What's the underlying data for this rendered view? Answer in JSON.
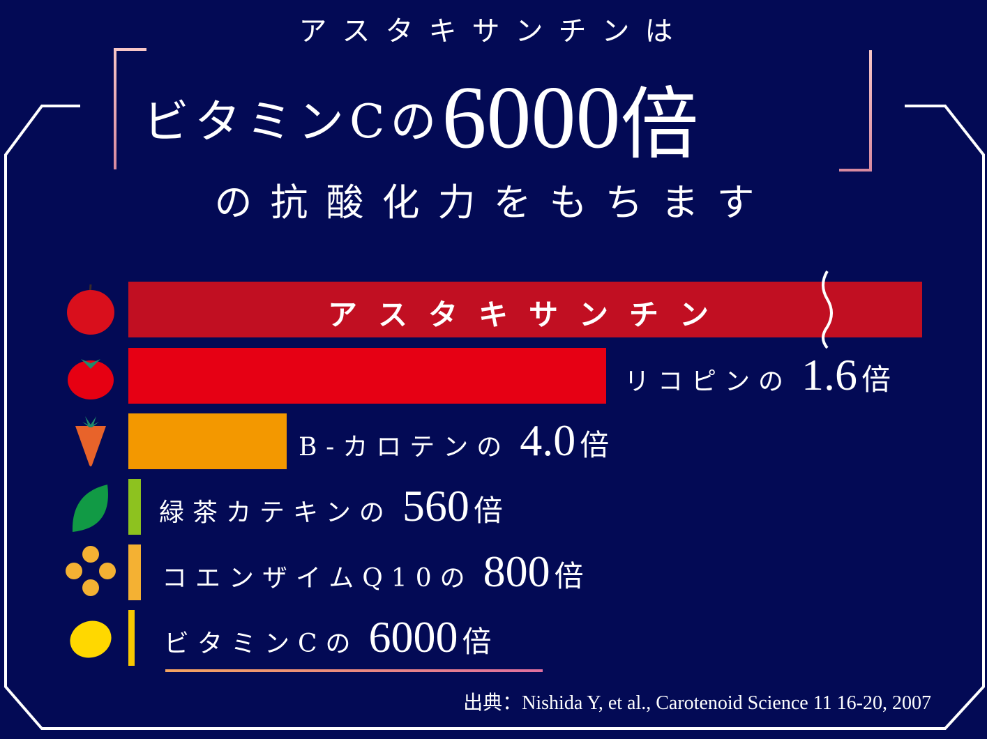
{
  "headline": {
    "line1": "アスタキサンチンは",
    "line2_prefix": "ビタミンCの",
    "line2_number": "6000",
    "line2_unit": "倍",
    "line3": "の抗酸化力をもちます"
  },
  "chart_data": {
    "type": "bar",
    "orientation": "horizontal",
    "reference": "アスタキサンチン",
    "unit": "倍",
    "categories": [
      "アスタキサンチン",
      "リコピン",
      "B-カロテン",
      "緑茶カテキン",
      "コエンザイムQ10",
      "ビタミンC"
    ],
    "values": [
      null,
      1.6,
      4.0,
      560,
      800,
      6000
    ],
    "labels": [
      {
        "name": "アスタキサンチン",
        "value": "",
        "unit": ""
      },
      {
        "name": "リコピンの",
        "value": "1.6",
        "unit": "倍"
      },
      {
        "name": "B-カロテンの",
        "value": "4.0",
        "unit": "倍"
      },
      {
        "name": "緑茶カテキンの",
        "value": "560",
        "unit": "倍"
      },
      {
        "name": "コエンザイムQ10の",
        "value": "800",
        "unit": "倍"
      },
      {
        "name": "ビタミンCの",
        "value": "6000",
        "unit": "倍"
      }
    ],
    "colors": [
      "#c10f22",
      "#e60014",
      "#f39800",
      "#8dc21f",
      "#f4b133",
      "#f8c800"
    ],
    "icons": [
      "apple-icon",
      "tomato-icon",
      "carrot-icon",
      "leaf-icon",
      "coq10-icon",
      "lemon-icon"
    ],
    "axis_break": true
  },
  "source": "出典：Nishida Y, et al., Carotenoid Science 11 16-20, 2007",
  "colors": {
    "background": "#030a55",
    "bracket": "#f0b0b8",
    "frame": "#ffffff"
  }
}
